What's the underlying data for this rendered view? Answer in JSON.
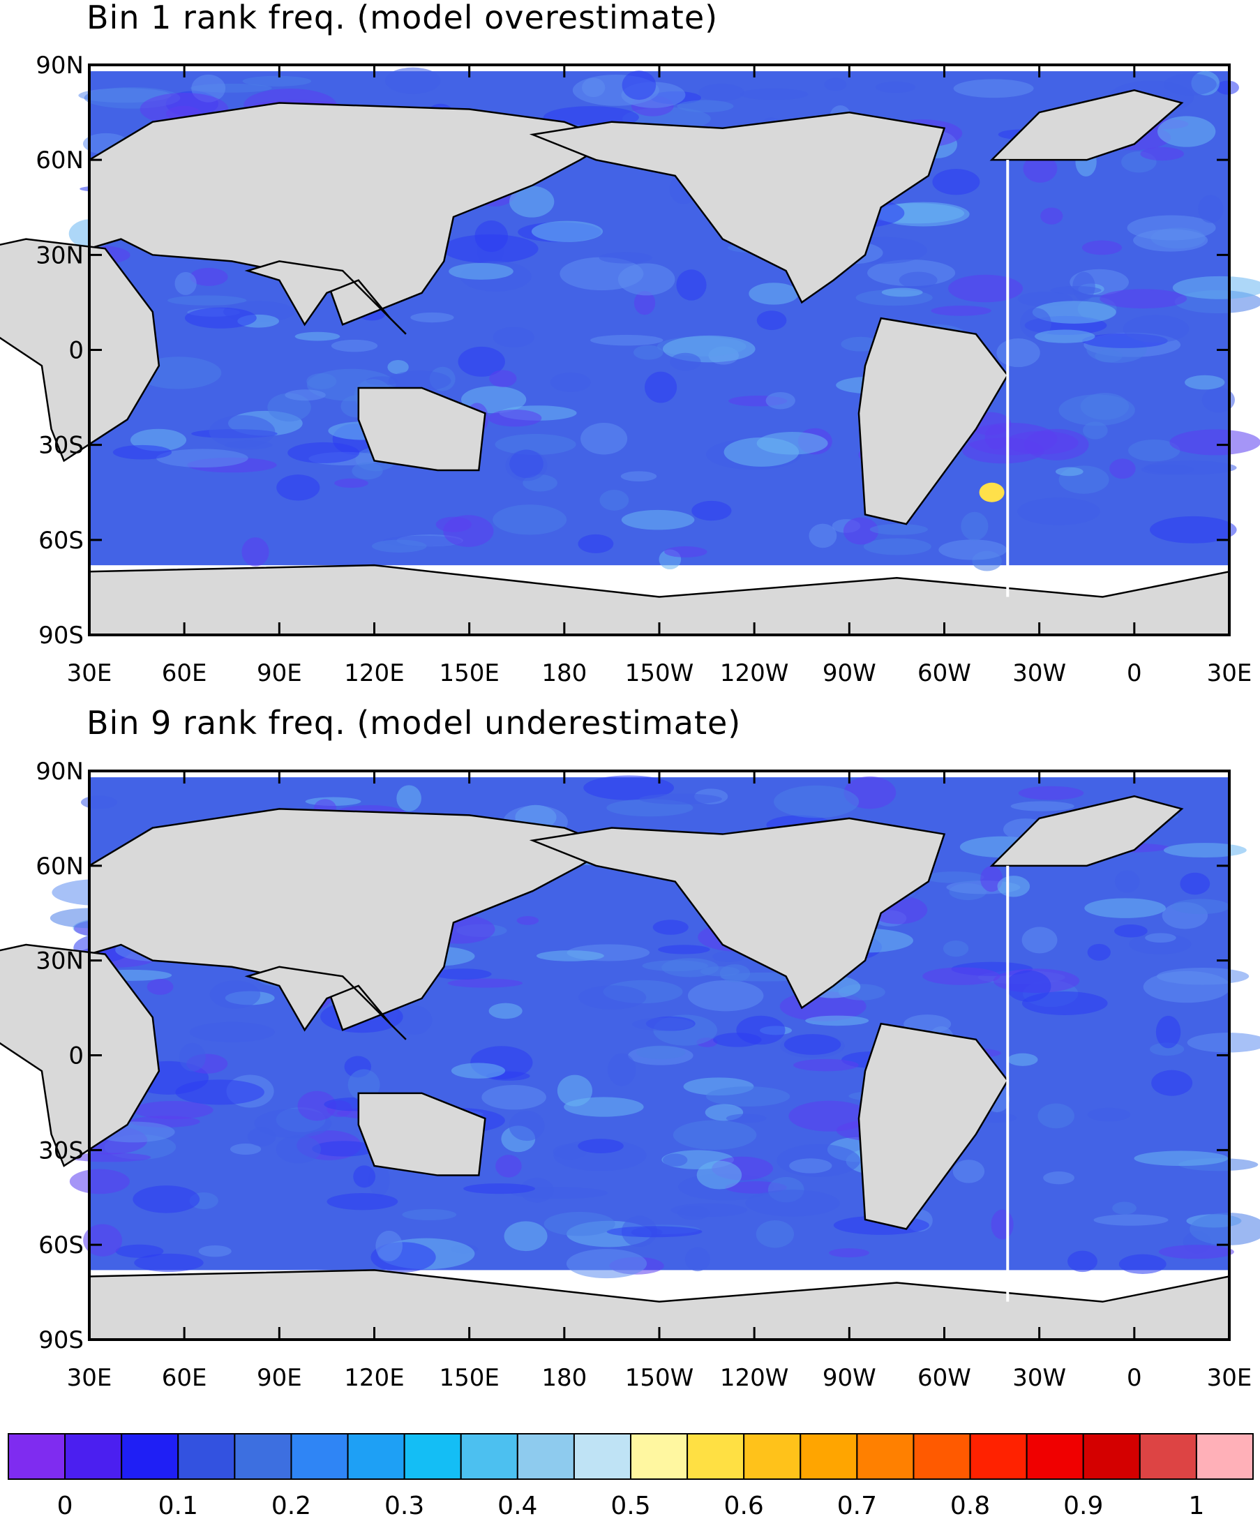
{
  "panels": [
    {
      "title": "Bin 1 rank freq. (model overestimate)",
      "lat_labels": [
        "90N",
        "60N",
        "30N",
        "0",
        "30S",
        "60S",
        "90S"
      ],
      "lon_labels": [
        "30E",
        "60E",
        "90E",
        "120E",
        "150E",
        "180",
        "150W",
        "120W",
        "90W",
        "60W",
        "30W",
        "0",
        "30E"
      ]
    },
    {
      "title": "Bin 9 rank freq. (model underestimate)",
      "lat_labels": [
        "90N",
        "60N",
        "30N",
        "0",
        "30S",
        "60S",
        "90S"
      ],
      "lon_labels": [
        "30E",
        "60E",
        "90E",
        "120E",
        "150E",
        "180",
        "150W",
        "120W",
        "90W",
        "60W",
        "30W",
        "0",
        "30E"
      ]
    }
  ],
  "colorbar": {
    "labels": [
      "0",
      "0.1",
      "0.2",
      "0.3",
      "0.4",
      "0.5",
      "0.6",
      "0.7",
      "0.8",
      "0.9",
      "1"
    ],
    "colors": [
      "#7f2cf0",
      "#4b1ff0",
      "#1f1ff5",
      "#3352e0",
      "#3d6fe0",
      "#2f85f5",
      "#1ea0f5",
      "#14bef5",
      "#4cc0f0",
      "#8ecbee",
      "#bfe3f5",
      "#fff7a0",
      "#ffe043",
      "#ffc21a",
      "#ffa500",
      "#ff8000",
      "#ff5a00",
      "#ff2200",
      "#f00000",
      "#d40000",
      "#dd4444",
      "#ffb0b8"
    ]
  },
  "colors": {
    "ocean": "#4363e6",
    "land": "#d9d9d9",
    "coast": "#000000",
    "highlight_light": "#6ab6f2",
    "highlight_yellow": "#ffe04a"
  }
}
